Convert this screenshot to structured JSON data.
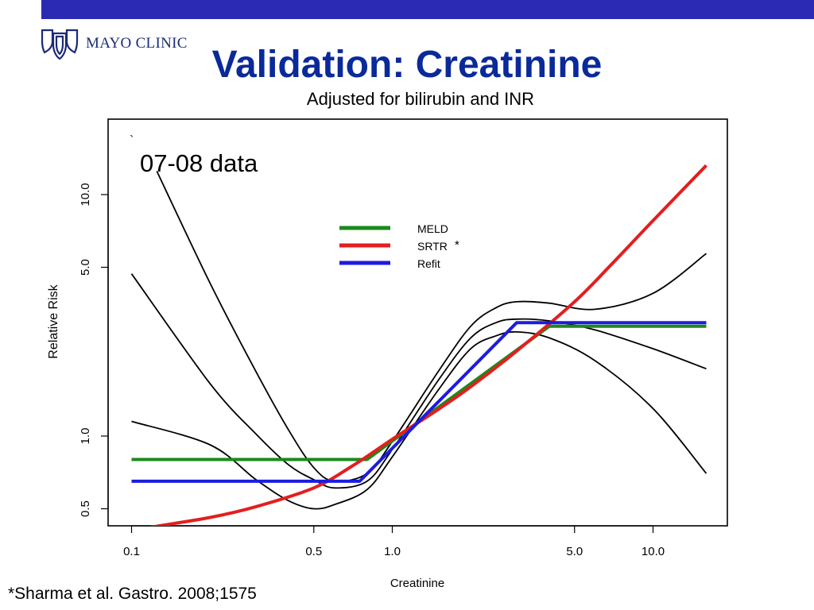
{
  "header": {
    "brand": "MAYO CLINIC",
    "title": "Validation: Creatinine",
    "subtitle": "Adjusted for bilirubin and INR",
    "footnote": "*Sharma et al. Gastro. 2008;1575",
    "bar_color": "#2a2ab4",
    "title_color": "#0a2a9a"
  },
  "chart_data": {
    "type": "line",
    "title": "Adjusted for bilirubin and INR",
    "xlabel": "Creatinine",
    "ylabel": "Relative Risk",
    "x_scale": "log",
    "y_scale": "log",
    "xlim": [
      0.1,
      20
    ],
    "ylim": [
      0.42,
      20
    ],
    "x_ticks": [
      0.1,
      0.5,
      1.0,
      5.0,
      10.0
    ],
    "x_tick_labels": [
      "0.1",
      "0.5",
      "1.0",
      "5.0",
      "10.0"
    ],
    "y_ticks": [
      0.5,
      1.0,
      5.0,
      10.0
    ],
    "y_tick_labels": [
      "0.5",
      "1.0",
      "5.0",
      "10.0"
    ],
    "grid": false,
    "legend": "top-center",
    "annotation": "07-08 data",
    "annotation_mark": "`",
    "series": [
      {
        "name": "MELD",
        "color": "#1a8a1a",
        "kind": "legend",
        "x": [
          0.1,
          0.8,
          4.0,
          16
        ],
        "y": [
          0.8,
          0.8,
          2.85,
          2.85
        ]
      },
      {
        "name": "SRTR",
        "legend_mark": "*",
        "color": "#e41e1e",
        "kind": "legend",
        "x": [
          0.1,
          0.12,
          0.2,
          0.3,
          0.5,
          0.7,
          1.0,
          1.5,
          2.0,
          3.0,
          5.0,
          7.0,
          10.0,
          16.0
        ],
        "y": [
          0.4,
          0.42,
          0.46,
          0.51,
          0.61,
          0.75,
          0.97,
          1.29,
          1.6,
          2.25,
          3.6,
          5.2,
          7.8,
          13.2
        ]
      },
      {
        "name": "Refit",
        "color": "#1c1ce0",
        "kind": "legend",
        "x": [
          0.1,
          0.75,
          3.0,
          16
        ],
        "y": [
          0.65,
          0.65,
          2.95,
          2.95
        ]
      },
      {
        "kind": "curve",
        "color": "#000000",
        "x": [
          0.125,
          0.2,
          0.3,
          0.4,
          0.5,
          0.6,
          0.8,
          1.0,
          1.5,
          2.0,
          2.5,
          3.0,
          4.0,
          6.0,
          10.0,
          16.0
        ],
        "y": [
          12.5,
          4.3,
          1.85,
          1.06,
          0.74,
          0.65,
          0.7,
          0.95,
          1.85,
          2.85,
          3.4,
          3.6,
          3.55,
          3.35,
          3.9,
          5.7
        ]
      },
      {
        "kind": "curve",
        "color": "#000000",
        "x": [
          0.1,
          0.2,
          0.3,
          0.4,
          0.5,
          0.6,
          0.8,
          1.0,
          1.5,
          2.0,
          2.5,
          3.0,
          4.0,
          6.0,
          10.0,
          16.0
        ],
        "y": [
          4.7,
          1.65,
          1.02,
          0.76,
          0.66,
          0.61,
          0.65,
          0.88,
          1.7,
          2.55,
          2.95,
          3.05,
          3.0,
          2.75,
          2.3,
          1.9
        ]
      },
      {
        "kind": "curve",
        "color": "#000000",
        "x": [
          0.1,
          0.2,
          0.3,
          0.4,
          0.5,
          0.6,
          0.8,
          1.0,
          1.5,
          2.0,
          2.5,
          3.0,
          4.0,
          6.0,
          10.0,
          16.0
        ],
        "y": [
          1.15,
          0.92,
          0.66,
          0.54,
          0.5,
          0.52,
          0.6,
          0.82,
          1.55,
          2.3,
          2.6,
          2.7,
          2.55,
          2.05,
          1.3,
          0.7
        ]
      }
    ]
  }
}
